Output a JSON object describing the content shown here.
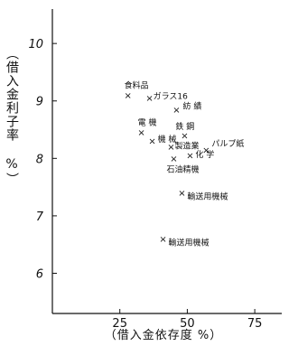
{
  "chart_data": {
    "type": "scatter",
    "xlabel": "（借入金依存度 %）",
    "ylabel": "（借入金利子率 %）",
    "xlim": [
      0,
      85
    ],
    "ylim": [
      5.3,
      10.6
    ],
    "xticks": [
      25,
      50,
      75
    ],
    "yticks": [
      6,
      7,
      8,
      9,
      10
    ],
    "xtick_labels": [
      "25",
      "50",
      "75"
    ],
    "ytick_labels": [
      "6",
      "7",
      "8",
      "9",
      "10"
    ],
    "grid": false,
    "points": [
      {
        "label": "食料品",
        "x": 28,
        "y": 9.1
      },
      {
        "label": "ガラス16",
        "x": 36,
        "y": 9.05
      },
      {
        "label": "紡 績",
        "x": 46,
        "y": 8.85
      },
      {
        "label": "電 機",
        "x": 33,
        "y": 8.45
      },
      {
        "label": "機 械",
        "x": 37,
        "y": 8.3
      },
      {
        "label": "鉄 鋼",
        "x": 49,
        "y": 8.4
      },
      {
        "label": "パルプ紙",
        "x": 57,
        "y": 8.15
      },
      {
        "label": "製造業",
        "x": 44,
        "y": 8.2
      },
      {
        "label": "化 学",
        "x": 51,
        "y": 8.05
      },
      {
        "label": "石油精機",
        "x": 45,
        "y": 8.0
      },
      {
        "label": "輸送用機械",
        "x": 48,
        "y": 7.4
      },
      {
        "label": "輸送用機械",
        "x": 41,
        "y": 6.6
      }
    ]
  }
}
